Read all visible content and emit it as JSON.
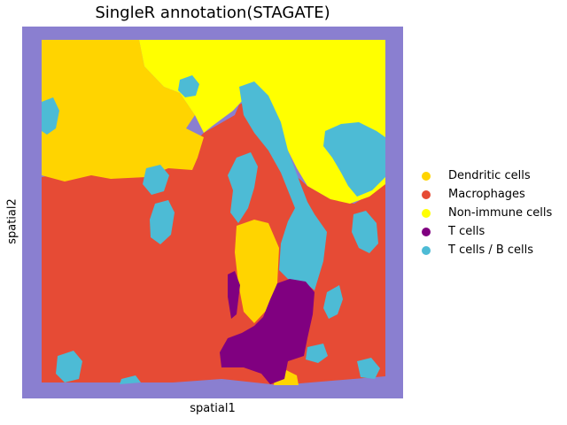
{
  "chart_data": {
    "type": "scatter",
    "title": "SingleR annotation(STAGATE)",
    "xlabel": "spatial1",
    "ylabel": "spatial2",
    "grid": false,
    "legend_position": "right",
    "series": [
      {
        "name": "Dendritic cells",
        "color": "#FFD400"
      },
      {
        "name": "Macrophages",
        "color": "#E64B35"
      },
      {
        "name": "Non-immune cells",
        "color": "#FFFF00"
      },
      {
        "name": "T cells",
        "color": "#800080"
      },
      {
        "name": "T cells / B cells",
        "color": "#4DBBD5"
      }
    ],
    "background_color": "#8A7FD0"
  }
}
